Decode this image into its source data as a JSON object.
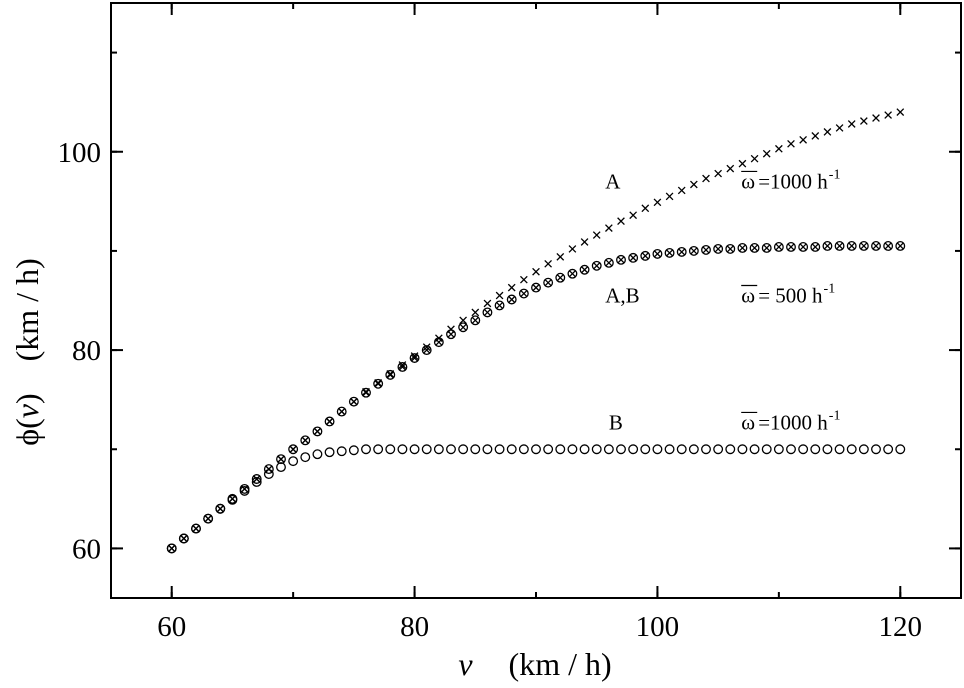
{
  "chart_data": {
    "type": "scatter",
    "xlabel_var": "v",
    "xlabel_units": "(km / h)",
    "ylabel_func": "ϕ(",
    "ylabel_var": "v",
    "ylabel_close": ")",
    "ylabel_units": "(km / h)",
    "xlim": [
      55,
      125
    ],
    "ylim": [
      55,
      115
    ],
    "xticks": [
      60,
      80,
      100,
      120
    ],
    "yticks": [
      60,
      80,
      100
    ],
    "series": [
      {
        "marker": "cross",
        "x": [
          60,
          61,
          62,
          63,
          64,
          65,
          66,
          67,
          68,
          69,
          70,
          71,
          72,
          73,
          74,
          75,
          76,
          77,
          78,
          79,
          80,
          81,
          82,
          83,
          84,
          85,
          86,
          87,
          88,
          89,
          90,
          91,
          92,
          93,
          94,
          95,
          96,
          97,
          98,
          99,
          100,
          101,
          102,
          103,
          104,
          105,
          106,
          107,
          108,
          109,
          110,
          111,
          112,
          113,
          114,
          115,
          116,
          117,
          118,
          119,
          120
        ],
        "y": [
          60,
          61,
          62,
          63,
          64,
          65,
          66,
          67,
          68,
          69,
          70,
          70.9,
          71.8,
          72.8,
          73.8,
          74.8,
          75.8,
          76.7,
          77.6,
          78.5,
          79.4,
          80.3,
          81.2,
          82.1,
          83.0,
          83.8,
          84.7,
          85.5,
          86.3,
          87.1,
          87.9,
          88.7,
          89.4,
          90.2,
          90.9,
          91.6,
          92.3,
          93.0,
          93.6,
          94.3,
          94.9,
          95.5,
          96.1,
          96.7,
          97.3,
          97.8,
          98.3,
          98.8,
          99.3,
          99.8,
          100.3,
          100.8,
          101.2,
          101.6,
          102.0,
          102.4,
          102.8,
          103.1,
          103.4,
          103.7,
          104.0
        ]
      },
      {
        "marker": "circle-cross",
        "x": [
          60,
          61,
          62,
          63,
          64,
          65,
          66,
          67,
          68,
          69,
          70,
          71,
          72,
          73,
          74,
          75,
          76,
          77,
          78,
          79,
          80,
          81,
          82,
          83,
          84,
          85,
          86,
          87,
          88,
          89,
          90,
          91,
          92,
          93,
          94,
          95,
          96,
          97,
          98,
          99,
          100,
          101,
          102,
          103,
          104,
          105,
          106,
          107,
          108,
          109,
          110,
          111,
          112,
          113,
          114,
          115,
          116,
          117,
          118,
          119,
          120
        ],
        "y": [
          60,
          61,
          62,
          63,
          64,
          65,
          66,
          67,
          68,
          69,
          70,
          70.9,
          71.8,
          72.8,
          73.8,
          74.8,
          75.7,
          76.6,
          77.5,
          78.3,
          79.2,
          80.0,
          80.8,
          81.6,
          82.3,
          83.0,
          83.8,
          84.5,
          85.1,
          85.7,
          86.3,
          86.8,
          87.3,
          87.7,
          88.1,
          88.5,
          88.8,
          89.1,
          89.3,
          89.5,
          89.7,
          89.8,
          89.9,
          90.0,
          90.1,
          90.2,
          90.2,
          90.3,
          90.3,
          90.3,
          90.4,
          90.4,
          90.4,
          90.4,
          90.5,
          90.5,
          90.5,
          90.5,
          90.5,
          90.5,
          90.5
        ]
      },
      {
        "marker": "circle",
        "x": [
          60,
          61,
          62,
          63,
          64,
          65,
          66,
          67,
          68,
          69,
          70,
          71,
          72,
          73,
          74,
          75,
          76,
          77,
          78,
          79,
          80,
          81,
          82,
          83,
          84,
          85,
          86,
          87,
          88,
          89,
          90,
          91,
          92,
          93,
          94,
          95,
          96,
          97,
          98,
          99,
          100,
          101,
          102,
          103,
          104,
          105,
          106,
          107,
          108,
          109,
          110,
          111,
          112,
          113,
          114,
          115,
          116,
          117,
          118,
          119,
          120
        ],
        "y": [
          60,
          61,
          62,
          63,
          64,
          64.9,
          65.8,
          66.7,
          67.5,
          68.2,
          68.8,
          69.2,
          69.5,
          69.7,
          69.8,
          69.9,
          70,
          70,
          70,
          70,
          70,
          70,
          70,
          70,
          70,
          70,
          70,
          70,
          70,
          70,
          70,
          70,
          70,
          70,
          70,
          70,
          70,
          70,
          70,
          70,
          70,
          70,
          70,
          70,
          70,
          70,
          70,
          70,
          70,
          70,
          70,
          70,
          70,
          70,
          70,
          70,
          70,
          70,
          70,
          70,
          70
        ]
      }
    ],
    "annotations": [
      {
        "id": "a",
        "label": "A",
        "x": 95.7,
        "y": 96.3,
        "omega": "ω",
        "eq": "=1000 h",
        "sup": "-1",
        "ox": 106.9
      },
      {
        "id": "ab",
        "label": "A,B",
        "x": 95.7,
        "y": 84.8,
        "omega": "ω",
        "eq": " = 500 h",
        "sup": "-1",
        "ox": 106.9
      },
      {
        "id": "b",
        "label": "B",
        "x": 96.0,
        "y": 72.0,
        "omega": "ω",
        "eq": "=1000 h",
        "sup": "-1",
        "ox": 106.9
      }
    ]
  }
}
